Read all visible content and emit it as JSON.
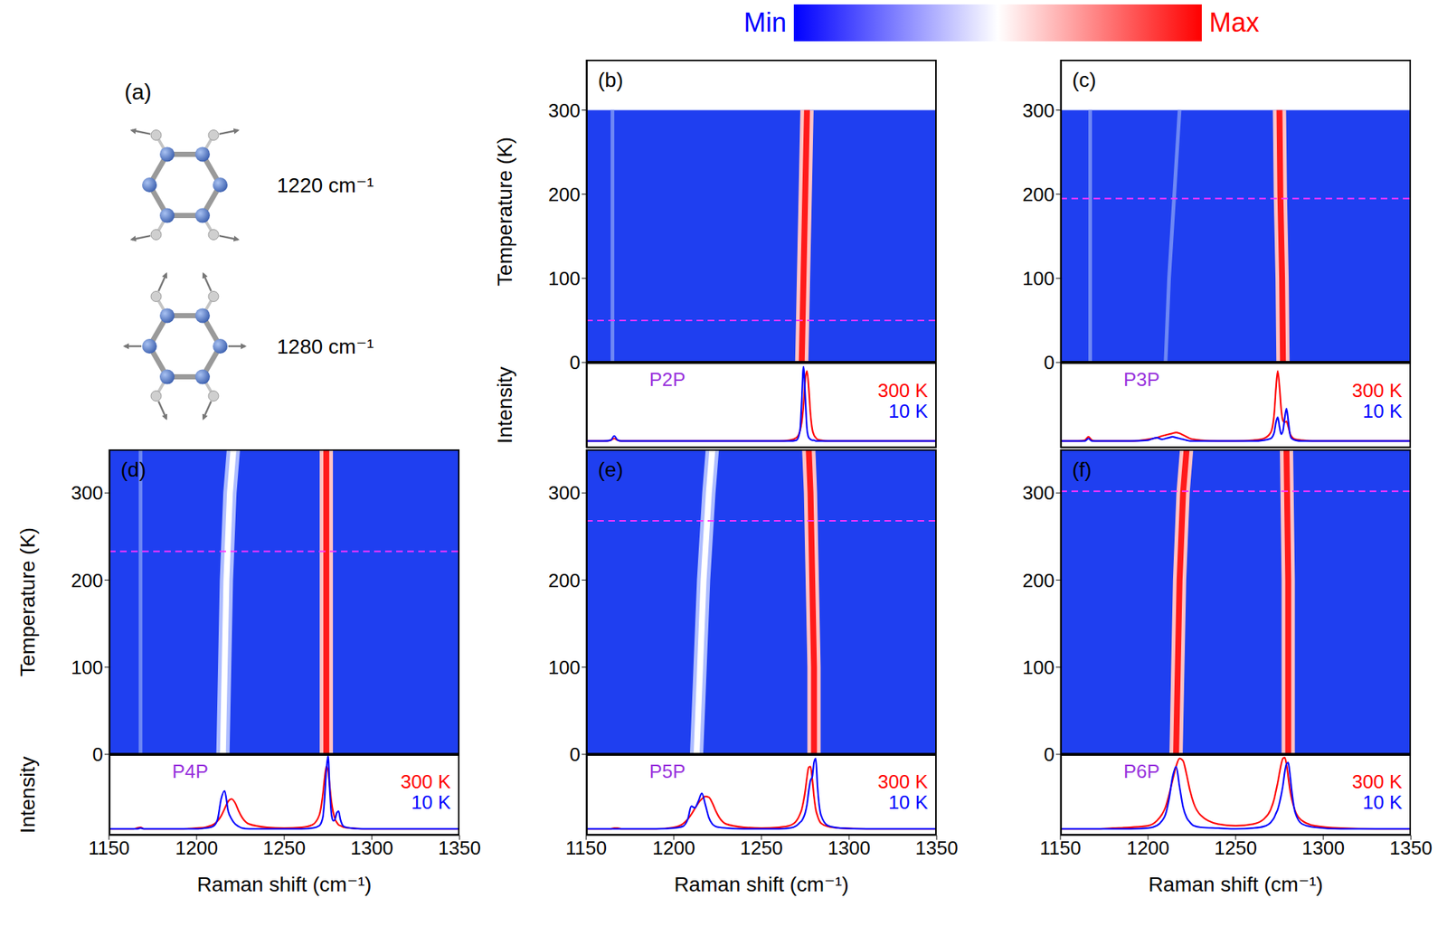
{
  "colorbar": {
    "labels": [
      "Min",
      "Max"
    ],
    "colors": [
      "#0000ff",
      "#ffffff",
      "#ff0000"
    ]
  },
  "diagram": {
    "label": "(a)",
    "modes": [
      {
        "label": "1220 cm⁻¹"
      },
      {
        "label": "1280 cm⁻¹"
      }
    ]
  },
  "chart_data": [
    {
      "type": "heatmap",
      "panel": "(b)",
      "ylabel": "Temperature (K)",
      "xlim": [
        1150,
        1350
      ],
      "ylim": [
        0,
        360
      ],
      "xticks": [
        1150,
        1200,
        1250,
        1300,
        1350
      ],
      "yticks": [
        0,
        100,
        200,
        300
      ],
      "tick_labels": "y",
      "color": "#1f3ff0",
      "temperature_range": [
        0,
        300
      ],
      "dashed_line_temperature": 50,
      "ridges": [
        {
          "color": "#6e88f4",
          "shift": [
            1165,
            1165
          ],
          "temperature": [
            0,
            300
          ]
        },
        {
          "color": "#ff1a1a",
          "shift": [
            1273,
            1274,
            1275,
            1276
          ],
          "temperature": [
            0,
            100,
            200,
            300
          ]
        }
      ]
    },
    {
      "type": "line",
      "title": "P2P",
      "ylabel": "Intensity",
      "xlim": [
        1150,
        1350
      ],
      "ylim": [
        0,
        100
      ],
      "xticks": [
        1150,
        1200,
        1250,
        1300,
        1350
      ],
      "tick_labels": false,
      "legend": "right",
      "x": [
        1150,
        1160,
        1164,
        1166,
        1168,
        1170,
        1180,
        1190,
        1200,
        1205,
        1208,
        1210,
        1212,
        1214,
        1216,
        1218,
        1220,
        1222,
        1224,
        1226,
        1230,
        1240,
        1250,
        1260,
        1266,
        1270,
        1272,
        1273,
        1274,
        1275,
        1276,
        1277,
        1278,
        1279,
        1280,
        1281,
        1282,
        1284,
        1288,
        1295,
        1310,
        1330,
        1350
      ],
      "series": [
        {
          "name": "300 K",
          "color": "#ff0000",
          "values": [
            8,
            8,
            9,
            11,
            9,
            8,
            8,
            8,
            8,
            8,
            8,
            8,
            8,
            8,
            8,
            8,
            8,
            8,
            8,
            8,
            8,
            8,
            8,
            8,
            9,
            12,
            20,
            30,
            50,
            80,
            90,
            70,
            40,
            22,
            15,
            12,
            10,
            9,
            8,
            8,
            8,
            8,
            8
          ]
        },
        {
          "name": "10 K",
          "color": "#0000ff",
          "values": [
            8,
            8,
            9,
            14,
            9,
            8,
            8,
            8,
            8,
            8,
            8,
            8,
            8,
            8,
            8,
            8,
            8,
            8,
            8,
            8,
            8,
            8,
            8,
            8,
            8,
            9,
            20,
            55,
            95,
            60,
            22,
            12,
            10,
            9,
            9,
            8,
            8,
            8,
            8,
            8,
            8,
            8,
            8
          ]
        }
      ]
    },
    {
      "type": "heatmap",
      "panel": "(c)",
      "xlim": [
        1150,
        1350
      ],
      "ylim": [
        0,
        360
      ],
      "xticks": [
        1150,
        1200,
        1250,
        1300,
        1350
      ],
      "yticks": [
        0,
        100,
        200,
        300
      ],
      "tick_labels": "y",
      "color": "#1f3ff0",
      "temperature_range": [
        0,
        300
      ],
      "dashed_line_temperature": 195,
      "ridges": [
        {
          "color": "#6e88f4",
          "shift": [
            1167,
            1167
          ],
          "temperature": [
            0,
            300
          ]
        },
        {
          "color": "#6e88f4",
          "shift": [
            1210,
            1212,
            1215,
            1218
          ],
          "temperature": [
            0,
            100,
            200,
            300
          ]
        },
        {
          "color": "#ff1a1a",
          "shift": [
            1277,
            1276.5,
            1275.5,
            1275
          ],
          "temperature": [
            0,
            100,
            200,
            300
          ]
        }
      ]
    },
    {
      "type": "line",
      "title": "P3P",
      "xlim": [
        1150,
        1350
      ],
      "ylim": [
        0,
        100
      ],
      "xticks": [
        1150,
        1200,
        1250,
        1300,
        1350
      ],
      "tick_labels": false,
      "legend": "right",
      "x": [
        1150,
        1160,
        1164,
        1166,
        1168,
        1170,
        1180,
        1190,
        1200,
        1205,
        1208,
        1210,
        1212,
        1214,
        1216,
        1218,
        1220,
        1222,
        1224,
        1226,
        1230,
        1240,
        1250,
        1260,
        1266,
        1270,
        1272,
        1273,
        1274,
        1275,
        1276,
        1277,
        1278,
        1279,
        1280,
        1281,
        1282,
        1284,
        1288,
        1295,
        1310,
        1330,
        1350
      ],
      "series": [
        {
          "name": "300 K",
          "color": "#ff0000",
          "values": [
            8,
            8,
            9,
            13,
            9,
            8,
            8,
            8,
            10,
            12,
            14,
            15,
            16,
            17,
            18,
            17,
            15,
            13,
            11,
            10,
            9,
            8,
            8,
            9,
            11,
            18,
            40,
            70,
            90,
            72,
            45,
            32,
            30,
            31,
            25,
            17,
            13,
            10,
            9,
            8,
            8,
            8,
            8
          ]
        },
        {
          "name": "10 K",
          "color": "#0000ff",
          "values": [
            8,
            8,
            8,
            11,
            8,
            8,
            8,
            8,
            9,
            12,
            10,
            11,
            12,
            13,
            12,
            11,
            10,
            9,
            8,
            8,
            8,
            8,
            8,
            8,
            9,
            11,
            18,
            30,
            36,
            25,
            16,
            20,
            35,
            46,
            32,
            16,
            11,
            9,
            8,
            8,
            8,
            8,
            8
          ]
        }
      ]
    },
    {
      "type": "heatmap",
      "panel": "(d)",
      "ylabel": "Temperature (K)",
      "xlim": [
        1150,
        1350
      ],
      "ylim": [
        0,
        350
      ],
      "xticks": [
        1150,
        1200,
        1250,
        1300,
        1350
      ],
      "yticks": [
        0,
        100,
        200,
        300
      ],
      "tick_labels": "y",
      "color": "#1f3ff0",
      "temperature_range": [
        0,
        350
      ],
      "dashed_line_temperature": 233,
      "ridges": [
        {
          "color": "#6e88f4",
          "shift": [
            1168,
            1168
          ],
          "temperature": [
            0,
            350
          ]
        },
        {
          "color": "#ffffff",
          "shift": [
            1215,
            1216,
            1217,
            1219,
            1221
          ],
          "temperature": [
            0,
            100,
            200,
            300,
            350
          ]
        },
        {
          "color": "#ff1a1a",
          "shift": [
            1274,
            1274
          ],
          "temperature": [
            0,
            350
          ]
        }
      ]
    },
    {
      "type": "line",
      "title": "P4P",
      "ylabel": "Intensity",
      "xlabel": "Raman shift (cm⁻¹)",
      "xlim": [
        1150,
        1350
      ],
      "ylim": [
        0,
        100
      ],
      "xticks": [
        1150,
        1200,
        1250,
        1300,
        1350
      ],
      "tick_labels": "x",
      "legend": "right",
      "x": [
        1150,
        1160,
        1164,
        1166,
        1168,
        1170,
        1180,
        1190,
        1200,
        1205,
        1208,
        1210,
        1212,
        1214,
        1216,
        1218,
        1220,
        1222,
        1224,
        1226,
        1230,
        1240,
        1250,
        1260,
        1266,
        1270,
        1272,
        1273,
        1274,
        1275,
        1276,
        1277,
        1278,
        1279,
        1280,
        1281,
        1282,
        1284,
        1288,
        1295,
        1310,
        1330,
        1350
      ],
      "series": [
        {
          "name": "300 K",
          "color": "#ff0000",
          "values": [
            8,
            8,
            8,
            9,
            10,
            8,
            8,
            8,
            9,
            10,
            12,
            14,
            18,
            24,
            33,
            42,
            45,
            40,
            30,
            22,
            14,
            10,
            9,
            10,
            13,
            25,
            50,
            70,
            85,
            80,
            60,
            40,
            28,
            20,
            16,
            13,
            12,
            10,
            9,
            8,
            8,
            8,
            8
          ]
        },
        {
          "name": "10 K",
          "color": "#0000ff",
          "values": [
            8,
            8,
            8,
            8,
            9,
            8,
            8,
            8,
            8,
            9,
            10,
            12,
            20,
            45,
            55,
            30,
            20,
            14,
            11,
            9,
            8,
            8,
            8,
            8,
            9,
            12,
            22,
            45,
            80,
            98,
            55,
            25,
            18,
            20,
            28,
            30,
            20,
            11,
            9,
            8,
            8,
            8,
            8
          ]
        }
      ]
    },
    {
      "type": "heatmap",
      "panel": "(e)",
      "xlim": [
        1150,
        1350
      ],
      "ylim": [
        0,
        350
      ],
      "xticks": [
        1150,
        1200,
        1250,
        1300,
        1350
      ],
      "yticks": [
        0,
        100,
        200,
        300
      ],
      "tick_labels": "y",
      "color": "#1f3ff0",
      "temperature_range": [
        0,
        350
      ],
      "dashed_line_temperature": 268,
      "ridges": [
        {
          "color": "#ffffff",
          "shift": [
            1213,
            1215,
            1217,
            1220,
            1222
          ],
          "temperature": [
            0,
            100,
            200,
            300,
            350
          ]
        },
        {
          "color": "#ff1a1a",
          "shift": [
            1280,
            1280,
            1279,
            1278,
            1277
          ],
          "temperature": [
            0,
            100,
            200,
            300,
            350
          ]
        }
      ]
    },
    {
      "type": "line",
      "title": "P5P",
      "xlabel": "Raman shift (cm⁻¹)",
      "xlim": [
        1150,
        1350
      ],
      "ylim": [
        0,
        100
      ],
      "xticks": [
        1150,
        1200,
        1250,
        1300,
        1350
      ],
      "tick_labels": "x",
      "legend": "right",
      "x": [
        1150,
        1160,
        1164,
        1166,
        1168,
        1170,
        1180,
        1190,
        1200,
        1205,
        1208,
        1210,
        1212,
        1214,
        1216,
        1218,
        1220,
        1222,
        1224,
        1226,
        1230,
        1240,
        1250,
        1260,
        1266,
        1270,
        1272,
        1273,
        1274,
        1275,
        1276,
        1277,
        1278,
        1279,
        1280,
        1281,
        1282,
        1284,
        1288,
        1295,
        1310,
        1330,
        1350
      ],
      "series": [
        {
          "name": "300 K",
          "color": "#ff0000",
          "values": [
            8,
            8,
            8,
            9,
            9,
            8,
            8,
            8,
            10,
            14,
            20,
            26,
            33,
            40,
            45,
            48,
            47,
            40,
            30,
            22,
            14,
            10,
            9,
            10,
            12,
            18,
            26,
            32,
            42,
            55,
            72,
            84,
            85,
            70,
            48,
            32,
            24,
            15,
            11,
            9,
            8,
            8,
            8
          ]
        },
        {
          "name": "10 K",
          "color": "#0000ff",
          "values": [
            8,
            8,
            8,
            8,
            8,
            8,
            8,
            8,
            9,
            11,
            20,
            36,
            34,
            42,
            52,
            38,
            22,
            14,
            11,
            10,
            9,
            8,
            8,
            8,
            9,
            12,
            16,
            18,
            22,
            28,
            38,
            55,
            68,
            72,
            90,
            95,
            60,
            25,
            12,
            9,
            8,
            8,
            8
          ]
        }
      ]
    },
    {
      "type": "heatmap",
      "panel": "(f)",
      "xlim": [
        1150,
        1350
      ],
      "ylim": [
        0,
        350
      ],
      "xticks": [
        1150,
        1200,
        1250,
        1300,
        1350
      ],
      "yticks": [
        0,
        100,
        200,
        300
      ],
      "tick_labels": "y",
      "color": "#1f3ff0",
      "temperature_range": [
        0,
        350
      ],
      "dashed_line_temperature": 302,
      "ridges": [
        {
          "color": "#ff1a1a",
          "shift": [
            1216,
            1217,
            1218,
            1220,
            1222
          ],
          "temperature": [
            0,
            100,
            200,
            300,
            350
          ]
        },
        {
          "color": "#ff1a1a",
          "shift": [
            1280,
            1280,
            1279
          ],
          "temperature": [
            0,
            200,
            350
          ]
        }
      ]
    },
    {
      "type": "line",
      "title": "P6P",
      "xlabel": "Raman shift (cm⁻¹)",
      "xlim": [
        1150,
        1350
      ],
      "ylim": [
        0,
        100
      ],
      "xticks": [
        1150,
        1200,
        1250,
        1300,
        1350
      ],
      "tick_labels": "x",
      "legend": "right",
      "x": [
        1150,
        1160,
        1164,
        1166,
        1168,
        1170,
        1180,
        1190,
        1200,
        1205,
        1208,
        1210,
        1212,
        1214,
        1216,
        1218,
        1220,
        1222,
        1224,
        1226,
        1230,
        1240,
        1250,
        1260,
        1266,
        1270,
        1272,
        1273,
        1274,
        1275,
        1276,
        1277,
        1278,
        1279,
        1280,
        1281,
        1282,
        1284,
        1288,
        1295,
        1310,
        1330,
        1350
      ],
      "series": [
        {
          "name": "300 K",
          "color": "#ff0000",
          "values": [
            8,
            8,
            8,
            8,
            8,
            8,
            9,
            10,
            12,
            18,
            26,
            35,
            50,
            68,
            85,
            95,
            92,
            75,
            55,
            40,
            25,
            14,
            12,
            14,
            20,
            32,
            45,
            55,
            65,
            77,
            88,
            95,
            96,
            88,
            72,
            56,
            45,
            30,
            18,
            12,
            9,
            8,
            8
          ]
        },
        {
          "name": "10 K",
          "color": "#0000ff",
          "values": [
            8,
            8,
            8,
            8,
            8,
            8,
            8,
            8,
            9,
            12,
            18,
            26,
            45,
            72,
            85,
            60,
            35,
            22,
            16,
            12,
            10,
            9,
            8,
            9,
            11,
            16,
            22,
            27,
            32,
            40,
            50,
            62,
            78,
            88,
            90,
            75,
            55,
            28,
            14,
            10,
            8,
            8,
            8
          ]
        }
      ]
    }
  ]
}
